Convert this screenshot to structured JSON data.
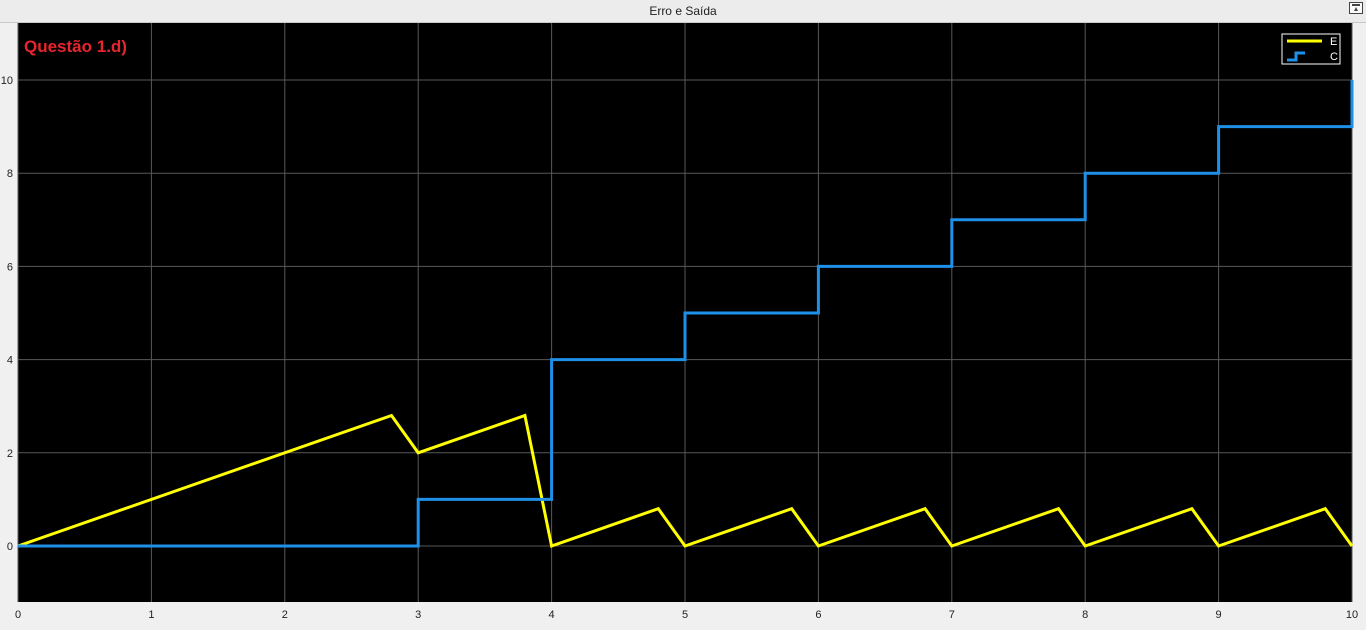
{
  "window": {
    "title": "Erro e Saída",
    "undock_icon": "undock-icon"
  },
  "colors": {
    "background": "#000000",
    "grid": "#595959",
    "series_E": "#ffff00",
    "series_C": "#1e90e8",
    "annotation": "#e8252e"
  },
  "chart_data": {
    "type": "line",
    "title": "Erro e Saída",
    "annotation": "Questão 1.d)",
    "xlim": [
      0,
      10
    ],
    "ylim": [
      -1.4,
      11
    ],
    "xticks": [
      0,
      1,
      2,
      3,
      4,
      5,
      6,
      7,
      8,
      9,
      10
    ],
    "yticks": [
      0,
      2,
      4,
      6,
      8,
      10
    ],
    "grid": true,
    "legend_position": "top-right",
    "series": [
      {
        "name": "E",
        "color": "#ffff00",
        "step": false,
        "points": [
          [
            0,
            0
          ],
          [
            2.8,
            2.8
          ],
          [
            3,
            2
          ],
          [
            3.8,
            2.8
          ],
          [
            4,
            0
          ],
          [
            4.8,
            0.8
          ],
          [
            5,
            0
          ],
          [
            5.8,
            0.8
          ],
          [
            6,
            0
          ],
          [
            6.8,
            0.8
          ],
          [
            7,
            0
          ],
          [
            7.8,
            0.8
          ],
          [
            8,
            0
          ],
          [
            8.8,
            0.8
          ],
          [
            9,
            0
          ],
          [
            9.8,
            0.8
          ],
          [
            10,
            0
          ]
        ]
      },
      {
        "name": "C",
        "color": "#1e90e8",
        "step": true,
        "points": [
          [
            0,
            0
          ],
          [
            3,
            0
          ],
          [
            3,
            1
          ],
          [
            4,
            1
          ],
          [
            4,
            4
          ],
          [
            5,
            4
          ],
          [
            5,
            5
          ],
          [
            6,
            5
          ],
          [
            6,
            6
          ],
          [
            7,
            6
          ],
          [
            7,
            7
          ],
          [
            8,
            7
          ],
          [
            8,
            8
          ],
          [
            9,
            8
          ],
          [
            9,
            9
          ],
          [
            10,
            9
          ],
          [
            10,
            10
          ]
        ]
      }
    ]
  }
}
